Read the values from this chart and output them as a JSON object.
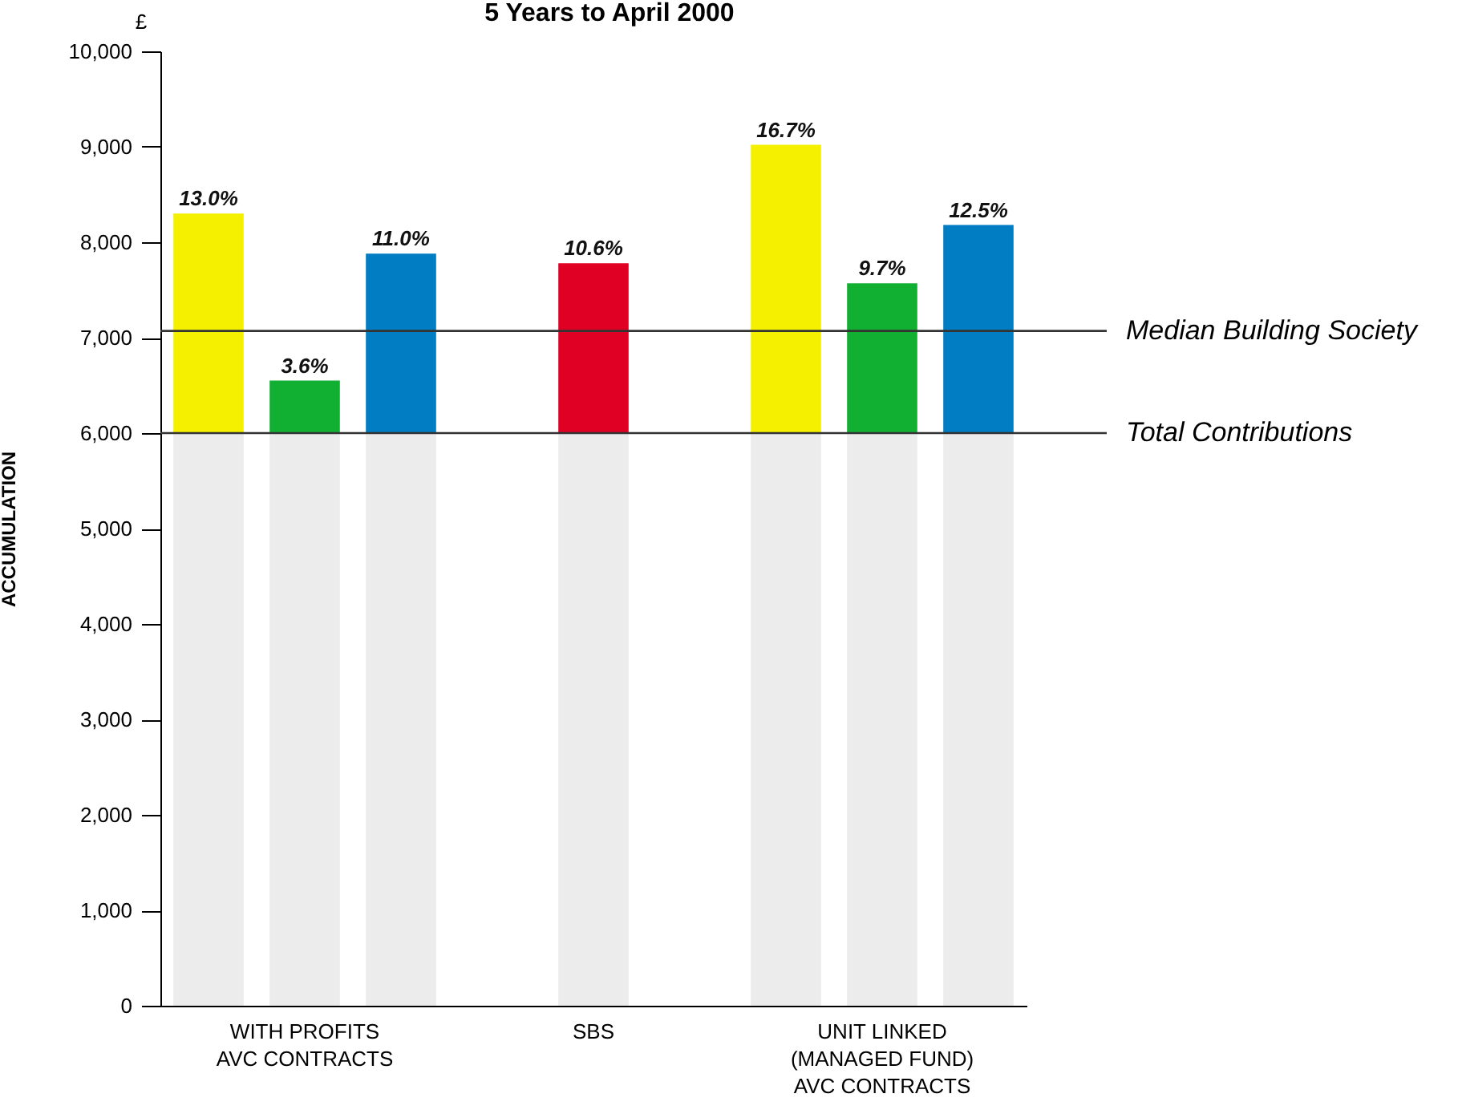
{
  "chart_data": {
    "type": "bar",
    "title": "5 Years to April 2000",
    "ylabel": "ACCUMULATION",
    "annotations": [
      "£",
      {
        "text": "13.0%",
        "y": 8300
      },
      {
        "text": "3.6%",
        "y": 6550
      },
      {
        "text": "11.0%",
        "y": 7880
      },
      {
        "text": "10.6%",
        "y": 7780
      },
      {
        "text": "16.7%",
        "y": 9020
      },
      {
        "text": "9.7%",
        "y": 7570
      },
      {
        "text": "12.5%",
        "y": 8180
      }
    ],
    "categories": [
      null,
      "WITH PROFITS\nAVC CONTRACTS",
      null,
      null,
      "SBS",
      null,
      null,
      "UNIT LINKED\n(MANAGED FUND)\n\nAVC CONTRACTS",
      null
    ],
    "stacked": true,
    "series": [
      {
        "color": "#ececec",
        "values": [
          6000,
          6000,
          6000,
          null,
          6000,
          null,
          6000,
          6000,
          6000
        ]
      },
      {
        "colors": [
          "#f5ef00",
          "#12b032",
          "#007dc3",
          null,
          "#e00024",
          null,
          "#f5ef00",
          "#12b032",
          "#007dc3"
        ],
        "values": [
          2300,
          550,
          1880,
          null,
          1780,
          null,
          3020,
          1570,
          2180
        ]
      }
    ],
    "ylim": [
      0,
      10000
    ],
    "yticks": [
      0,
      {
        "value": 1000,
        "label": "1,000"
      },
      {
        "value": 2000,
        "label": "2,000"
      },
      {
        "value": 3000,
        "label": "3,000"
      },
      {
        "value": 4000,
        "label": "4,000"
      },
      {
        "value": 5000,
        "label": "5,000"
      },
      {
        "value": 6000,
        "label": "6,000"
      },
      {
        "value": 7000,
        "label": "7,000"
      },
      {
        "value": 8000,
        "label": "8,000"
      },
      {
        "value": 9000,
        "label": "9,000"
      },
      {
        "value": 10000,
        "label": "10,000"
      }
    ],
    "ref_lines": [
      {
        "axis": "y",
        "value": 7070,
        "label": "Median Building Society"
      },
      {
        "axis": "y",
        "value": 6000,
        "label": "Total Contributions"
      }
    ]
  }
}
